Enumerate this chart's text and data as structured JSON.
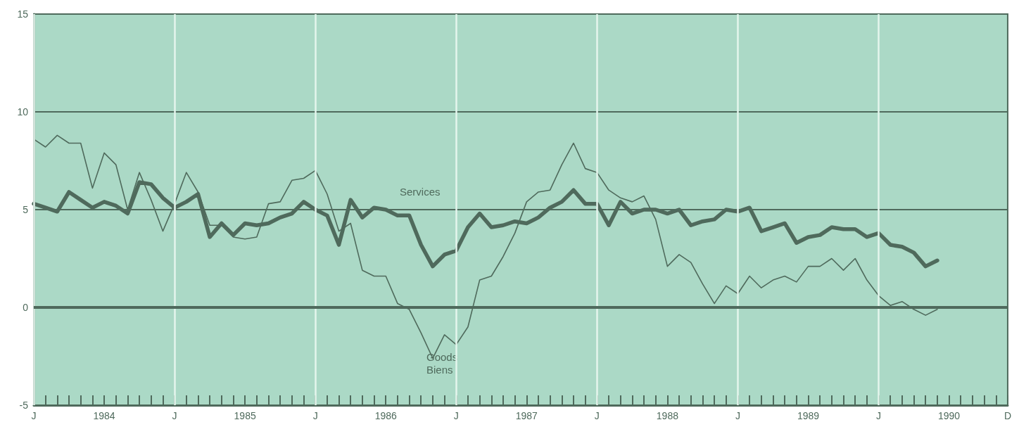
{
  "chart_data": {
    "type": "line",
    "categories": [
      "J",
      null,
      null,
      null,
      null,
      null,
      "1984",
      null,
      null,
      null,
      null,
      null,
      "J",
      null,
      null,
      null,
      null,
      null,
      "1985",
      null,
      null,
      null,
      null,
      null,
      "J",
      null,
      null,
      null,
      null,
      null,
      "1986",
      null,
      null,
      null,
      null,
      null,
      "J",
      null,
      null,
      null,
      null,
      null,
      "1987",
      null,
      null,
      null,
      null,
      null,
      "J",
      null,
      null,
      null,
      null,
      null,
      "1988",
      null,
      null,
      null,
      null,
      null,
      "J",
      null,
      null,
      null,
      null,
      null,
      "1989",
      null,
      null,
      null,
      null,
      null,
      "J",
      null,
      null,
      null,
      null,
      null,
      "1990",
      null,
      null,
      null,
      null,
      "D"
    ],
    "series": [
      {
        "color": "#4f6a5c",
        "values": [
          8.6,
          8.2,
          8.8,
          8.4,
          8.4,
          6.1,
          7.9,
          7.3,
          5.0,
          6.9,
          5.5,
          3.9,
          5.3,
          6.9,
          5.9,
          4.2,
          4.2,
          3.6,
          3.5,
          3.6,
          5.3,
          5.4,
          6.5,
          6.6,
          7.0,
          5.8,
          3.9,
          4.3,
          1.9,
          1.6,
          1.6,
          0.2,
          -0.1,
          -1.3,
          -2.6,
          -1.4,
          -1.9,
          -1.0,
          1.4,
          1.6,
          2.6,
          3.8,
          5.4,
          5.9,
          6.0,
          7.3,
          8.4,
          7.1,
          6.9,
          6.0,
          5.6,
          5.4,
          5.7,
          4.5,
          2.1,
          2.7,
          2.3,
          1.2,
          0.2,
          1.1,
          0.7,
          1.6,
          1.0,
          1.4,
          1.6,
          1.3,
          2.1,
          2.1,
          2.5,
          1.9,
          2.5,
          1.4,
          0.6,
          0.1,
          0.3,
          -0.1,
          -0.4,
          -0.1,
          null,
          null,
          null,
          null,
          null,
          null
        ]
      },
      {
        "color": "#4f6a5c",
        "values": [
          5.3,
          5.1,
          4.9,
          5.9,
          5.5,
          5.1,
          5.4,
          5.2,
          4.8,
          6.4,
          6.3,
          5.6,
          5.1,
          5.4,
          5.8,
          3.6,
          4.3,
          3.7,
          4.3,
          4.2,
          4.3,
          4.6,
          4.8,
          5.4,
          5.0,
          4.7,
          3.2,
          5.5,
          4.6,
          5.1,
          5.0,
          4.7,
          4.7,
          3.2,
          2.1,
          2.7,
          2.9,
          4.1,
          4.8,
          4.1,
          4.2,
          4.4,
          4.3,
          4.6,
          5.1,
          5.4,
          6.0,
          5.3,
          5.3,
          4.2,
          5.4,
          4.8,
          5.0,
          5.0,
          4.8,
          5.0,
          4.2,
          4.4,
          4.5,
          5.0,
          4.9,
          5.1,
          3.9,
          4.1,
          4.3,
          3.3,
          3.6,
          3.7,
          4.1,
          4.0,
          4.0,
          3.6,
          3.8,
          3.2,
          3.1,
          2.8,
          2.1,
          2.4,
          null,
          null,
          null,
          null,
          null,
          null
        ]
      }
    ],
    "ylim": [
      -5,
      15
    ],
    "yticks": [
      -5,
      0,
      5,
      10,
      15
    ],
    "grid": true,
    "marker": "none",
    "line_style": "solid",
    "ref_lines": [
      {
        "axis": "y",
        "value": 0,
        "color": "#4f6a5c"
      }
    ],
    "annotations": [
      "Services",
      "Goods",
      "Biens"
    ]
  }
}
